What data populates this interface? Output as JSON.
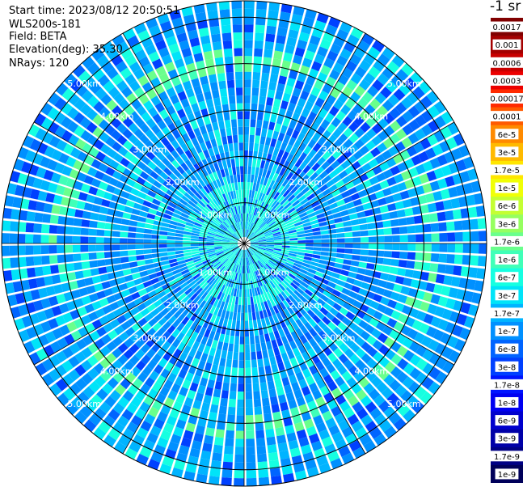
{
  "info": {
    "start_time": "Start time: 2023/08/12 20:50:51",
    "instrument": "WLS200s-181",
    "field": "Field: BETA",
    "elevation": "Elevation(deg): 35.30",
    "nrays": "NRays: 120"
  },
  "plot": {
    "range_rings": [
      {
        "range_km": 1,
        "label": "1.00km"
      },
      {
        "range_km": 2,
        "label": "2.00km"
      },
      {
        "range_km": 3,
        "label": "3.00km"
      },
      {
        "range_km": 4,
        "label": "4.00km"
      },
      {
        "range_km": 5,
        "label": "5.00km"
      }
    ],
    "max_range_km": 5.1,
    "spoke_angles_deg": [
      0,
      30,
      60,
      90,
      120,
      150,
      180,
      210,
      240,
      270,
      300,
      330
    ],
    "ray_count": 120,
    "ring_color": "#000000",
    "label_color": "#ffffff"
  },
  "colorbar": {
    "unit_label": "-1 sr",
    "levels": [
      {
        "label": "0.0017",
        "color": "#800000"
      },
      {
        "label": "0.001",
        "color": "#a40000"
      },
      {
        "label": "0.0006",
        "color": "#c80000"
      },
      {
        "label": "0.0003",
        "color": "#ec0000"
      },
      {
        "label": "0.00017",
        "color": "#ff2a00"
      },
      {
        "label": "0.0001",
        "color": "#ff5a00"
      },
      {
        "label": "6e-5",
        "color": "#ff8a00"
      },
      {
        "label": "3e-5",
        "color": "#ffba00"
      },
      {
        "label": "1.7e-5",
        "color": "#ffe600"
      },
      {
        "label": "1e-5",
        "color": "#f0ff06"
      },
      {
        "label": "6e-6",
        "color": "#c4ff33"
      },
      {
        "label": "3e-6",
        "color": "#96ff60"
      },
      {
        "label": "1.7e-6",
        "color": "#6aff8c"
      },
      {
        "label": "1e-6",
        "color": "#40ffb8"
      },
      {
        "label": "6e-7",
        "color": "#16ffe1"
      },
      {
        "label": "3e-7",
        "color": "#00e4f8"
      },
      {
        "label": "1.7e-7",
        "color": "#00b4ff"
      },
      {
        "label": "1e-7",
        "color": "#0090ff"
      },
      {
        "label": "6e-8",
        "color": "#0064ff"
      },
      {
        "label": "3e-8",
        "color": "#0040ff"
      },
      {
        "label": "1.7e-8",
        "color": "#0014ff"
      },
      {
        "label": "1e-8",
        "color": "#0000f1"
      },
      {
        "label": "6e-9",
        "color": "#0000cd"
      },
      {
        "label": "3e-9",
        "color": "#0000a8"
      },
      {
        "label": "1.7e-9",
        "color": "#000084"
      },
      {
        "label": "1e-9",
        "color": "#00005a"
      }
    ]
  }
}
